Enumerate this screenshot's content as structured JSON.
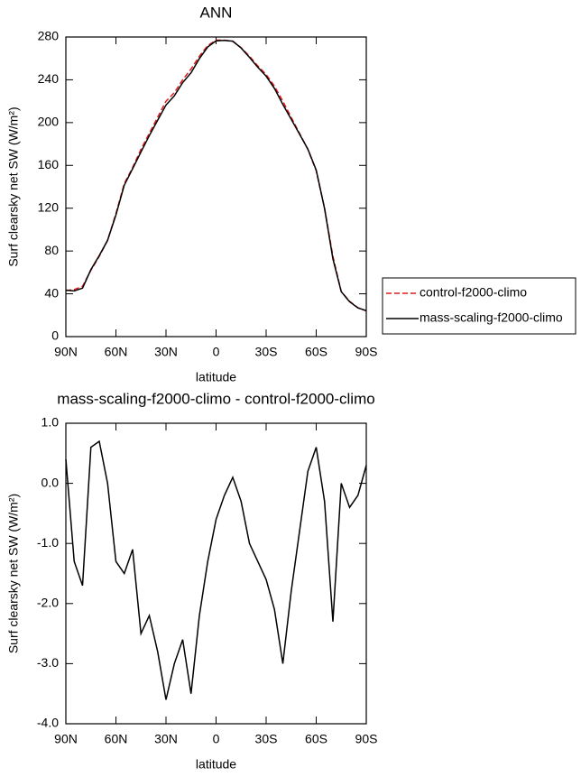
{
  "chart_data": [
    {
      "type": "line",
      "title": "ANN",
      "xlabel": "latitude",
      "ylabel": "Surf clearsky net SW (W/m²)",
      "x": [
        90,
        85,
        80,
        75,
        70,
        65,
        60,
        55,
        50,
        45,
        40,
        35,
        30,
        25,
        20,
        15,
        10,
        5,
        0,
        -5,
        -10,
        -15,
        -20,
        -25,
        -30,
        -35,
        -40,
        -45,
        -50,
        -55,
        -60,
        -65,
        -70,
        -75,
        -80,
        -85,
        -90
      ],
      "series": [
        {
          "name": "control-f2000-climo",
          "color": "#e41a1c",
          "style": "dashed",
          "values": [
            43,
            44,
            47,
            62,
            75,
            90,
            115,
            143,
            158,
            175,
            190,
            205,
            220,
            228,
            240,
            250,
            262,
            272,
            277,
            277,
            276,
            270,
            262,
            253,
            245,
            234,
            220,
            205,
            190,
            175,
            155,
            120,
            75,
            42,
            33,
            27,
            24
          ]
        },
        {
          "name": "mass-scaling-f2000-climo",
          "color": "#000000",
          "style": "solid",
          "values": [
            43.4,
            42.7,
            45.3,
            62.6,
            75.7,
            90,
            113.7,
            141.5,
            156.9,
            172.5,
            187.8,
            202.2,
            216.4,
            225,
            237.4,
            246.5,
            259.8,
            270.7,
            276.4,
            276.8,
            276.1,
            269.7,
            261,
            251.7,
            243.4,
            231.9,
            217,
            203.2,
            189.2,
            175.2,
            155.6,
            119.7,
            72.7,
            42,
            32.6,
            26.8,
            24.3
          ]
        }
      ],
      "xlim": [
        90,
        -90
      ],
      "xticks": [
        {
          "value": 90,
          "label": "90N"
        },
        {
          "value": 60,
          "label": "60N"
        },
        {
          "value": 30,
          "label": "30N"
        },
        0,
        {
          "value": -30,
          "label": "30S"
        },
        {
          "value": -60,
          "label": "60S"
        },
        {
          "value": -90,
          "label": "90S"
        }
      ],
      "ylim": [
        0,
        280
      ],
      "yticks": [
        0,
        40,
        80,
        120,
        160,
        200,
        240,
        280
      ],
      "legend": "right"
    },
    {
      "type": "line",
      "title": "mass-scaling-f2000-climo - control-f2000-climo",
      "xlabel": "latitude",
      "ylabel": "Surf clearsky net SW (W/m²)",
      "x": [
        90,
        85,
        80,
        75,
        70,
        65,
        60,
        55,
        50,
        45,
        40,
        35,
        30,
        25,
        20,
        15,
        10,
        5,
        0,
        -5,
        -10,
        -15,
        -20,
        -25,
        -30,
        -35,
        -40,
        -45,
        -50,
        -55,
        -60,
        -65,
        -70,
        -75,
        -80,
        -85,
        -90
      ],
      "series": [
        {
          "color": "#000000",
          "style": "solid",
          "values": [
            0.4,
            -1.3,
            -1.7,
            0.6,
            0.7,
            0.0,
            -1.3,
            -1.5,
            -1.1,
            -2.5,
            -2.2,
            -2.8,
            -3.6,
            -3.0,
            -2.6,
            -3.5,
            -2.2,
            -1.3,
            -0.6,
            -0.2,
            0.1,
            -0.3,
            -1.0,
            -1.3,
            -1.6,
            -2.1,
            -3.0,
            -1.8,
            -0.8,
            0.2,
            0.6,
            -0.3,
            -2.3,
            0.0,
            -0.4,
            -0.2,
            0.3
          ]
        }
      ],
      "xlim": [
        90,
        -90
      ],
      "xticks": [
        {
          "value": 90,
          "label": "90N"
        },
        {
          "value": 60,
          "label": "60N"
        },
        {
          "value": 30,
          "label": "30N"
        },
        0,
        {
          "value": -30,
          "label": "30S"
        },
        {
          "value": -60,
          "label": "60S"
        },
        {
          "value": -90,
          "label": "90S"
        }
      ],
      "ylim": [
        -4,
        1
      ],
      "yticks": [
        {
          "value": -4,
          "label": "-4.0"
        },
        {
          "value": -3,
          "label": "-3.0"
        },
        {
          "value": -2,
          "label": "-2.0"
        },
        {
          "value": -1,
          "label": "-1.0"
        },
        {
          "value": 0,
          "label": "0.0"
        },
        {
          "value": 1,
          "label": "1.0"
        }
      ]
    }
  ]
}
